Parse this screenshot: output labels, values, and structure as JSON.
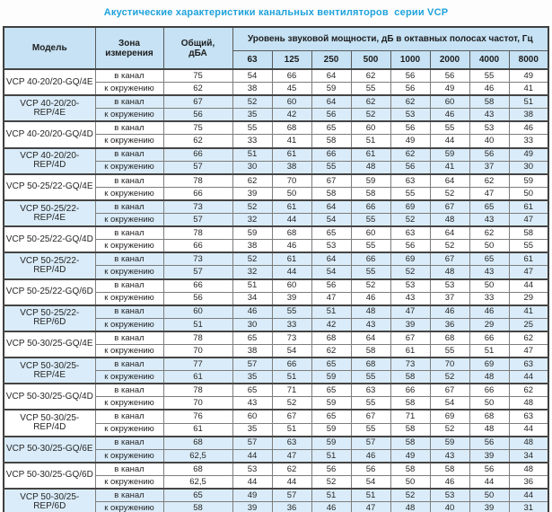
{
  "title": "Акустические характеристики канальных вентиляторов  серии VCP",
  "colors": {
    "title_accent": "#1da2dc",
    "header_bg": "#c6e2f4",
    "stripe_bg": "#daecf9",
    "border_dark": "#3f3f3f",
    "border_light": "#7d7d7d",
    "text": "#262626"
  },
  "table": {
    "headers": {
      "model": "Модель",
      "zone_line1": "Зона",
      "zone_line2": "измерения",
      "total_line1": "Общий,",
      "total_line2": "дБА",
      "spl_group": "Уровень звуковой мощности, дБ в октавных полосах частот, Гц",
      "frequencies": [
        "63",
        "125",
        "250",
        "500",
        "1000",
        "2000",
        "4000",
        "8000"
      ]
    },
    "zone_labels": [
      "в канал",
      "к окружению"
    ],
    "rows": [
      {
        "model": "VCP 40-20/20-GQ/4E",
        "shaded": false,
        "in_duct": {
          "total": "75",
          "bands": [
            54,
            66,
            64,
            62,
            56,
            56,
            55,
            49
          ]
        },
        "to_ambient": {
          "total": "62",
          "bands": [
            38,
            45,
            59,
            55,
            56,
            49,
            46,
            41
          ]
        }
      },
      {
        "model": "VCP 40-20/20-REP/4E",
        "shaded": true,
        "in_duct": {
          "total": "67",
          "bands": [
            52,
            60,
            64,
            62,
            62,
            60,
            58,
            51
          ]
        },
        "to_ambient": {
          "total": "56",
          "bands": [
            35,
            42,
            56,
            52,
            53,
            46,
            43,
            38
          ]
        }
      },
      {
        "model": "VCP 40-20/20-GQ/4D",
        "shaded": false,
        "in_duct": {
          "total": "75",
          "bands": [
            55,
            68,
            65,
            60,
            56,
            55,
            53,
            46
          ]
        },
        "to_ambient": {
          "total": "62",
          "bands": [
            33,
            41,
            58,
            51,
            49,
            44,
            40,
            33
          ]
        }
      },
      {
        "model": "VCP 40-20/20-REP/4D",
        "shaded": true,
        "in_duct": {
          "total": "66",
          "bands": [
            51,
            61,
            66,
            61,
            62,
            59,
            56,
            49
          ]
        },
        "to_ambient": {
          "total": "57",
          "bands": [
            30,
            38,
            55,
            48,
            56,
            41,
            37,
            30
          ]
        }
      },
      {
        "model": "VCP 50-25/22-GQ/4E",
        "shaded": false,
        "in_duct": {
          "total": "78",
          "bands": [
            62,
            70,
            67,
            59,
            63,
            64,
            62,
            59
          ]
        },
        "to_ambient": {
          "total": "66",
          "bands": [
            39,
            50,
            58,
            58,
            55,
            52,
            47,
            50
          ]
        }
      },
      {
        "model": "VCP 50-25/22-REP/4E",
        "shaded": true,
        "in_duct": {
          "total": "73",
          "bands": [
            52,
            61,
            64,
            66,
            69,
            67,
            65,
            61
          ]
        },
        "to_ambient": {
          "total": "57",
          "bands": [
            32,
            44,
            54,
            55,
            52,
            48,
            43,
            47
          ]
        }
      },
      {
        "model": "VCP 50-25/22-GQ/4D",
        "shaded": false,
        "in_duct": {
          "total": "78",
          "bands": [
            59,
            68,
            65,
            60,
            63,
            64,
            62,
            58
          ]
        },
        "to_ambient": {
          "total": "66",
          "bands": [
            38,
            46,
            53,
            55,
            56,
            52,
            50,
            55
          ]
        }
      },
      {
        "model": "VCP 50-25/22-REP/4D",
        "shaded": true,
        "in_duct": {
          "total": "73",
          "bands": [
            52,
            61,
            64,
            66,
            69,
            67,
            65,
            61
          ]
        },
        "to_ambient": {
          "total": "57",
          "bands": [
            32,
            44,
            54,
            55,
            52,
            48,
            43,
            47
          ]
        }
      },
      {
        "model": "VCP 50-25/22-GQ/6D",
        "shaded": false,
        "in_duct": {
          "total": "66",
          "bands": [
            51,
            60,
            56,
            52,
            53,
            53,
            50,
            44
          ]
        },
        "to_ambient": {
          "total": "56",
          "bands": [
            34,
            39,
            47,
            46,
            43,
            37,
            33,
            29
          ]
        }
      },
      {
        "model": "VCP 50-25/22-REP/6D",
        "shaded": true,
        "in_duct": {
          "total": "60",
          "bands": [
            46,
            55,
            51,
            48,
            47,
            46,
            46,
            41
          ]
        },
        "to_ambient": {
          "total": "51",
          "bands": [
            30,
            33,
            42,
            43,
            39,
            36,
            29,
            25
          ]
        }
      },
      {
        "model": "VCP 50-30/25-GQ/4E",
        "shaded": false,
        "in_duct": {
          "total": "78",
          "bands": [
            65,
            73,
            68,
            64,
            67,
            68,
            66,
            62
          ]
        },
        "to_ambient": {
          "total": "70",
          "bands": [
            38,
            54,
            62,
            58,
            61,
            55,
            51,
            47
          ]
        }
      },
      {
        "model": "VCP 50-30/25-REP/4E",
        "shaded": true,
        "in_duct": {
          "total": "77",
          "bands": [
            57,
            66,
            65,
            68,
            73,
            70,
            69,
            63
          ]
        },
        "to_ambient": {
          "total": "61",
          "bands": [
            35,
            51,
            59,
            55,
            58,
            52,
            48,
            44
          ]
        }
      },
      {
        "model": "VCP 50-30/25-GQ/4D",
        "shaded": false,
        "in_duct": {
          "total": "78",
          "bands": [
            65,
            71,
            65,
            63,
            66,
            67,
            66,
            62
          ]
        },
        "to_ambient": {
          "total": "70",
          "bands": [
            43,
            52,
            59,
            55,
            58,
            54,
            50,
            48
          ]
        }
      },
      {
        "model": "VCP 50-30/25-REP/4D",
        "shaded": false,
        "in_duct": {
          "total": "76",
          "bands": [
            60,
            67,
            65,
            67,
            71,
            69,
            68,
            63
          ]
        },
        "to_ambient": {
          "total": "61",
          "bands": [
            35,
            51,
            59,
            55,
            58,
            52,
            48,
            44
          ]
        }
      },
      {
        "model": "VCP 50-30/25-GQ/6E",
        "shaded": true,
        "in_duct": {
          "total": "68",
          "bands": [
            57,
            63,
            59,
            57,
            58,
            59,
            56,
            48
          ]
        },
        "to_ambient": {
          "total": "62,5",
          "bands": [
            44,
            47,
            51,
            46,
            49,
            43,
            39,
            34
          ]
        }
      },
      {
        "model": "VCP 50-30/25-GQ/6D",
        "shaded": false,
        "in_duct": {
          "total": "68",
          "bands": [
            53,
            62,
            56,
            56,
            58,
            58,
            56,
            48
          ]
        },
        "to_ambient": {
          "total": "62,5",
          "bands": [
            44,
            44,
            52,
            54,
            50,
            46,
            44,
            36
          ]
        }
      },
      {
        "model": "VCP 50-30/25-REP/6D",
        "shaded": true,
        "in_duct": {
          "total": "65",
          "bands": [
            49,
            57,
            51,
            51,
            52,
            53,
            50,
            44
          ]
        },
        "to_ambient": {
          "total": "58",
          "bands": [
            39,
            36,
            46,
            47,
            48,
            40,
            39,
            31
          ]
        }
      }
    ]
  }
}
